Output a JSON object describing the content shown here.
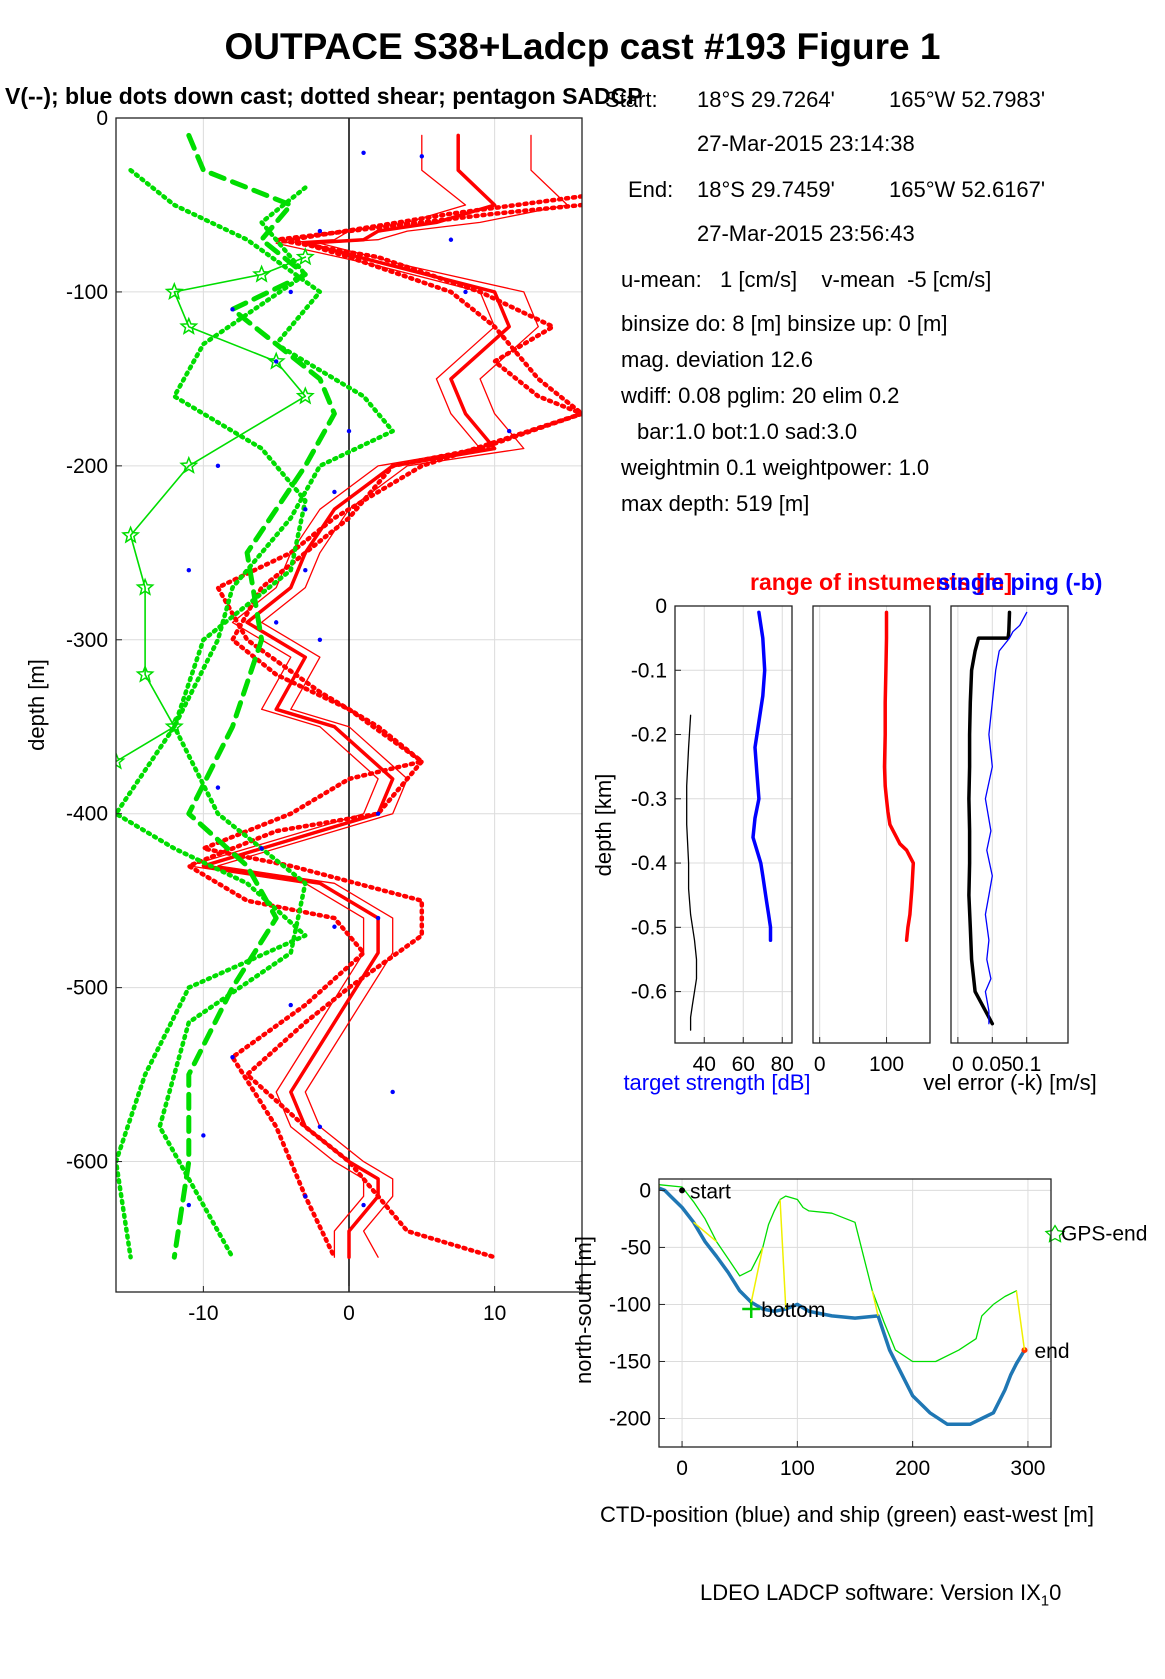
{
  "title": "OUTPACE S38+Ladcp cast #193  Figure 1",
  "subtitle": "V(--); blue dots down cast; dotted shear; pentagon SADCP",
  "info": {
    "start_label": "Start:",
    "start_lat": "18°S 29.7264'",
    "start_lon": "165°W 52.7983'",
    "start_time": "27-Mar-2015 23:14:38",
    "end_label": "End:",
    "end_lat": "18°S 29.7459'",
    "end_lon": "165°W 52.6167'",
    "end_time": "27-Mar-2015 23:56:43",
    "means": "u-mean:   1 [cm/s]    v-mean  -5 [cm/s]",
    "binsize": "binsize do: 8 [m]  binsize up:  0 [m]",
    "magdev": "mag. deviation 12.6",
    "wdiff": "wdiff: 0.08  pglim: 20  elim 0.2",
    "bar": "bar:1.0 bot:1.0 sad:3.0",
    "weight": "weightmin 0.1  weightpower: 1.0",
    "maxdepth": "max depth: 519 [m]"
  },
  "footer": {
    "text": "LDEO LADCP software: Version IX",
    "sub": "1",
    "tail": "0"
  },
  "chart_data": [
    {
      "type": "line",
      "panel": "velocity-profile",
      "title": "",
      "xlabel": "",
      "ylabel": "depth [m]",
      "xlim": [
        -16,
        16
      ],
      "ylim": [
        -675,
        0
      ],
      "xticks": [
        -10,
        0,
        10
      ],
      "yticks": [
        0,
        -100,
        -200,
        -300,
        -400,
        -500,
        -600
      ],
      "grid": true,
      "series": [
        {
          "color": "#ff0000",
          "style": "solid-thick",
          "x": [
            7.5,
            7.5,
            10,
            6,
            2,
            1,
            -3,
            3,
            10,
            11,
            9,
            7,
            8,
            10,
            3,
            -1,
            -3,
            -4,
            -7,
            -3,
            -5,
            -1,
            3,
            2,
            -6,
            -10,
            -2,
            2,
            2,
            -1,
            -4,
            -3,
            0,
            2,
            2,
            0,
            0
          ],
          "y": [
            -10,
            -30,
            -50,
            -60,
            -65,
            -70,
            -72,
            -85,
            -100,
            -120,
            -135,
            -150,
            -170,
            -190,
            -200,
            -225,
            -250,
            -270,
            -290,
            -310,
            -340,
            -350,
            -380,
            -400,
            -420,
            -430,
            -440,
            -460,
            -480,
            -520,
            -560,
            -580,
            -600,
            -610,
            -620,
            -640,
            -655
          ]
        },
        {
          "color": "#ff0000",
          "style": "solid",
          "x": [
            5,
            5,
            8,
            4,
            0,
            -1,
            -5,
            2,
            9,
            10,
            8,
            6,
            7,
            9,
            2,
            -2,
            -4,
            -5,
            -8,
            -4,
            -6,
            -2,
            2,
            1,
            -7,
            -11,
            -3,
            1,
            1,
            -2,
            -5,
            -4,
            -1,
            1,
            1,
            -1,
            -1
          ],
          "y": [
            -10,
            -30,
            -50,
            -60,
            -65,
            -70,
            -72,
            -85,
            -100,
            -120,
            -135,
            -150,
            -170,
            -190,
            -200,
            -225,
            -250,
            -270,
            -290,
            -310,
            -340,
            -350,
            -380,
            -400,
            -420,
            -430,
            -440,
            -460,
            -480,
            -520,
            -560,
            -580,
            -600,
            -610,
            -620,
            -640,
            -655
          ]
        },
        {
          "color": "#ff0000",
          "style": "solid",
          "x": [
            12.5,
            12.5,
            15,
            9,
            4,
            2,
            -2,
            4,
            12,
            13,
            11,
            9,
            10,
            12,
            4,
            0,
            -2,
            -3,
            -6,
            -2,
            -4,
            0,
            4,
            3,
            -5,
            -9,
            -1,
            3,
            3,
            0,
            -3,
            -2,
            1,
            3,
            3,
            1,
            2
          ],
          "y": [
            -10,
            -30,
            -50,
            -60,
            -65,
            -70,
            -72,
            -85,
            -100,
            -120,
            -135,
            -150,
            -170,
            -190,
            -200,
            -225,
            -250,
            -270,
            -290,
            -310,
            -340,
            -350,
            -380,
            -400,
            -420,
            -430,
            -440,
            -460,
            -480,
            -520,
            -560,
            -580,
            -600,
            -610,
            -620,
            -640,
            -655
          ]
        },
        {
          "color": "#ff0000",
          "style": "dotted-thick",
          "x": [
            16,
            10,
            5,
            0,
            -5,
            2,
            9,
            14,
            10,
            13,
            16,
            9,
            3,
            0,
            -3,
            -6,
            -8,
            -5,
            0,
            5,
            0,
            -4,
            -10,
            -4,
            5,
            5,
            0,
            -3,
            -7,
            -3,
            0,
            4,
            10
          ],
          "y": [
            -50,
            -55,
            -60,
            -65,
            -70,
            -80,
            -100,
            -120,
            -140,
            -160,
            -170,
            -190,
            -200,
            -230,
            -250,
            -270,
            -300,
            -320,
            -340,
            -370,
            -380,
            -400,
            -420,
            -430,
            -450,
            -470,
            -500,
            -520,
            -550,
            -580,
            -600,
            -640,
            -655
          ]
        },
        {
          "color": "#ff0000",
          "style": "dotted-thick",
          "x": [
            16,
            7,
            2,
            -4,
            0,
            7,
            10,
            13,
            16,
            5,
            -1,
            -4,
            -9,
            -7,
            -2,
            2,
            5,
            2,
            -5,
            -11,
            -7,
            -1,
            1,
            -3,
            -8,
            -5,
            -3,
            -1
          ],
          "y": [
            -45,
            -55,
            -62,
            -70,
            -80,
            -100,
            -120,
            -150,
            -170,
            -200,
            -230,
            -250,
            -270,
            -300,
            -330,
            -350,
            -370,
            -400,
            -410,
            -430,
            -450,
            -460,
            -480,
            -510,
            -540,
            -580,
            -620,
            -655
          ]
        },
        {
          "color": "#00dd00",
          "style": "dashed-thick",
          "x": [
            -11,
            -10,
            -4,
            -6,
            -3,
            -8,
            -5,
            -2,
            -1,
            -3,
            -7,
            -6,
            -8,
            -11,
            -7,
            -5,
            -8,
            -11,
            -11,
            -12
          ],
          "y": [
            -10,
            -30,
            -50,
            -70,
            -90,
            -110,
            -130,
            -150,
            -170,
            -200,
            -250,
            -300,
            -350,
            -400,
            -430,
            -460,
            -500,
            -550,
            -600,
            -655
          ]
        },
        {
          "color": "#00dd00",
          "style": "dotted-thick",
          "x": [
            -15,
            -12,
            -7,
            -2,
            -5,
            1,
            3,
            -2,
            -4,
            -8,
            -9,
            -12,
            -16,
            -12,
            -7,
            -3,
            -11,
            -14,
            -16,
            -15
          ],
          "y": [
            -30,
            -50,
            -70,
            -100,
            -130,
            -160,
            -180,
            -200,
            -230,
            -270,
            -300,
            -350,
            -400,
            -420,
            -440,
            -470,
            -500,
            -550,
            -600,
            -655
          ]
        },
        {
          "color": "#00dd00",
          "style": "dotted-thick",
          "x": [
            -3,
            -6,
            -3,
            -10,
            -12,
            -6,
            -3,
            -4,
            -10,
            -12,
            -9,
            -3,
            -4,
            -11,
            -13,
            -8
          ],
          "y": [
            -40,
            -60,
            -90,
            -130,
            -160,
            -190,
            -220,
            -260,
            -300,
            -350,
            -400,
            -440,
            -480,
            -520,
            -580,
            -655
          ]
        },
        {
          "color": "#00dd00",
          "style": "solid-marker",
          "x": [
            -3,
            -6,
            -12,
            -11,
            -5,
            -3,
            -11,
            -15,
            -14,
            -14,
            -12,
            -16
          ],
          "y": [
            -80,
            -90,
            -100,
            -120,
            -140,
            -160,
            -200,
            -240,
            -270,
            -320,
            -350,
            -370
          ]
        }
      ],
      "dots": {
        "color": "#0000ff",
        "x": [
          1,
          5,
          -2,
          7,
          -4,
          8,
          -8,
          11,
          -5,
          -9,
          -11,
          0,
          -1,
          -3,
          -5,
          -3,
          -2,
          -9,
          -6,
          2,
          -1,
          -4,
          2,
          -8,
          -10,
          -2,
          -11,
          3,
          -3,
          1
        ],
        "y": [
          -20,
          -22,
          -65,
          -70,
          -100,
          -100,
          -110,
          -180,
          -140,
          -200,
          -260,
          -180,
          -215,
          -225,
          -290,
          -260,
          -300,
          -385,
          -420,
          -400,
          -465,
          -510,
          -460,
          -540,
          -585,
          -580,
          -625,
          -560,
          -620,
          -625
        ]
      }
    },
    {
      "type": "line",
      "panel": "target-strength",
      "title": "range of instuments [m]",
      "xlabel": "target strength [dB]",
      "ylabel": "depth [km]",
      "xlim": [
        25,
        85
      ],
      "ylim": [
        -0.68,
        0
      ],
      "xticks": [
        40,
        60,
        80
      ],
      "yticks": [
        0,
        -0.1,
        -0.2,
        -0.3,
        -0.4,
        -0.5,
        -0.6
      ],
      "grid": true,
      "series": [
        {
          "color": "#0000ff",
          "style": "solid-thick",
          "x": [
            68,
            70,
            71,
            70,
            68,
            66,
            67,
            68,
            66,
            65,
            67,
            69,
            70,
            71,
            72,
            73,
            74,
            74
          ],
          "y": [
            -0.01,
            -0.05,
            -0.1,
            -0.14,
            -0.18,
            -0.22,
            -0.26,
            -0.3,
            -0.33,
            -0.36,
            -0.38,
            -0.4,
            -0.42,
            -0.44,
            -0.46,
            -0.48,
            -0.5,
            -0.52
          ]
        },
        {
          "color": "#000000",
          "style": "solid",
          "x": [
            33,
            32,
            31,
            31,
            32,
            32,
            33,
            35,
            36,
            36,
            35,
            34,
            33,
            33
          ],
          "y": [
            -0.17,
            -0.22,
            -0.28,
            -0.34,
            -0.4,
            -0.44,
            -0.48,
            -0.52,
            -0.55,
            -0.58,
            -0.6,
            -0.62,
            -0.64,
            -0.66
          ]
        }
      ]
    },
    {
      "type": "line",
      "panel": "range",
      "title": "",
      "xlabel": "",
      "ylabel": "",
      "xlim": [
        -10,
        165
      ],
      "ylim": [
        -0.68,
        0
      ],
      "xticks": [
        0,
        100
      ],
      "yticks": [],
      "grid": true,
      "series": [
        {
          "color": "#ff0000",
          "style": "solid-thick",
          "x": [
            100,
            100,
            99,
            98,
            98,
            97,
            98,
            100,
            102,
            105,
            110,
            115,
            120,
            130,
            140,
            138,
            135,
            132,
            130
          ],
          "y": [
            -0.01,
            -0.05,
            -0.1,
            -0.15,
            -0.2,
            -0.25,
            -0.28,
            -0.3,
            -0.32,
            -0.34,
            -0.35,
            -0.36,
            -0.37,
            -0.38,
            -0.4,
            -0.44,
            -0.48,
            -0.5,
            -0.52
          ]
        }
      ]
    },
    {
      "type": "line",
      "panel": "velocity-error",
      "title": "single ping (-b)",
      "xlabel": "vel error (-k) [m/s]",
      "ylabel": "",
      "xlim": [
        -0.01,
        0.16
      ],
      "ylim": [
        -0.68,
        0
      ],
      "xticks": [
        0,
        0.05,
        0.1
      ],
      "yticks": [],
      "grid": true,
      "series": [
        {
          "color": "#000000",
          "style": "solid-thick",
          "x": [
            0.075,
            0.074,
            0.073,
            0.03,
            0.025,
            0.02,
            0.018,
            0.017,
            0.017,
            0.016,
            0.017,
            0.017,
            0.016,
            0.018,
            0.02,
            0.025,
            0.035,
            0.045,
            0.05
          ],
          "y": [
            -0.01,
            -0.04,
            -0.05,
            -0.05,
            -0.07,
            -0.1,
            -0.15,
            -0.2,
            -0.25,
            -0.3,
            -0.35,
            -0.4,
            -0.45,
            -0.5,
            -0.55,
            -0.6,
            -0.62,
            -0.64,
            -0.65
          ]
        },
        {
          "color": "#0000ff",
          "style": "solid",
          "x": [
            0.1,
            0.09,
            0.08,
            0.075,
            0.06,
            0.055,
            0.05,
            0.045,
            0.05,
            0.04,
            0.048,
            0.042,
            0.05,
            0.045,
            0.04,
            0.045,
            0.042,
            0.048,
            0.04,
            0.045,
            0.045
          ],
          "y": [
            -0.01,
            -0.03,
            -0.04,
            -0.05,
            -0.07,
            -0.1,
            -0.15,
            -0.2,
            -0.25,
            -0.3,
            -0.35,
            -0.38,
            -0.42,
            -0.45,
            -0.48,
            -0.52,
            -0.55,
            -0.58,
            -0.6,
            -0.63,
            -0.65
          ]
        }
      ]
    },
    {
      "type": "line",
      "panel": "position",
      "title": "",
      "xlabel": "CTD-position (blue) and ship (green) east-west [m]",
      "ylabel": "north-south [m]",
      "xlim": [
        -20,
        320
      ],
      "ylim": [
        -225,
        10
      ],
      "xticks": [
        0,
        100,
        200,
        300
      ],
      "yticks": [
        0,
        -50,
        -100,
        -150,
        -200
      ],
      "grid": true,
      "labels": {
        "start": "start",
        "bottom": "bottom",
        "end": "end",
        "gps_end": "GPS-end"
      },
      "series": [
        {
          "color": "#1f77b4",
          "style": "solid-thick",
          "x": [
            -20,
            -15,
            -10,
            0,
            10,
            20,
            30,
            40,
            50,
            60,
            70,
            80,
            90,
            100,
            110,
            130,
            150,
            170,
            180,
            190,
            200,
            215,
            230,
            250,
            260,
            270,
            280,
            285,
            290,
            297
          ],
          "y": [
            2,
            0,
            -5,
            -15,
            -28,
            -45,
            -58,
            -72,
            -88,
            -98,
            -104,
            -106,
            -104,
            -100,
            -106,
            -110,
            -112,
            -110,
            -140,
            -160,
            -180,
            -195,
            -205,
            -205,
            -200,
            -195,
            -175,
            -162,
            -152,
            -140
          ]
        },
        {
          "color": "#00dd00",
          "style": "solid",
          "x": [
            -20,
            0,
            10,
            20,
            30,
            40,
            50,
            60,
            70,
            75,
            80,
            85,
            90,
            100,
            105,
            110,
            130,
            150,
            158,
            165,
            175,
            185,
            200,
            220,
            240,
            255,
            260,
            270,
            280,
            290
          ],
          "y": [
            5,
            3,
            -10,
            -25,
            -45,
            -60,
            -75,
            -70,
            -50,
            -30,
            -18,
            -8,
            -5,
            -8,
            -15,
            -18,
            -20,
            -28,
            -60,
            -88,
            -115,
            -140,
            -150,
            -150,
            -140,
            -130,
            -110,
            -100,
            -93,
            -88
          ]
        }
      ]
    }
  ]
}
